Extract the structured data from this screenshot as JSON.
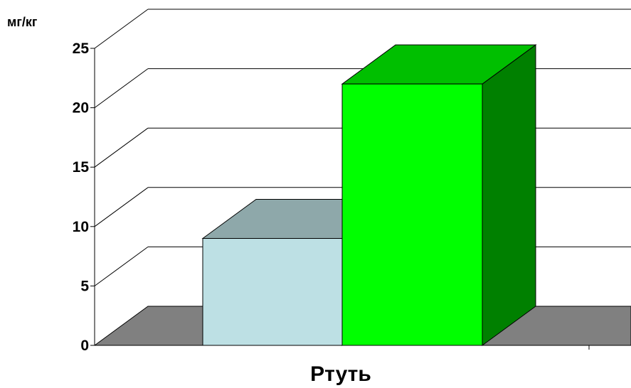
{
  "chart_data": {
    "type": "bar",
    "three_d": true,
    "ylabel": "мг/кг",
    "xlabel": "Ртуть",
    "ylim": [
      0,
      25
    ],
    "y_ticks": [
      0,
      5,
      10,
      15,
      20,
      25
    ],
    "grid": true,
    "legend": "none",
    "series": [
      {
        "values": [
          9
        ]
      },
      {
        "values": [
          22
        ]
      }
    ],
    "colors": {
      "series1_front": "#bde0e4",
      "series1_top": "#8ea8aa",
      "series1_side": "#8ea8aa",
      "series2_front": "#00ff00",
      "series2_top": "#00bf00",
      "series2_side": "#008000",
      "floor": "#808080",
      "gridline": "#000000"
    }
  }
}
